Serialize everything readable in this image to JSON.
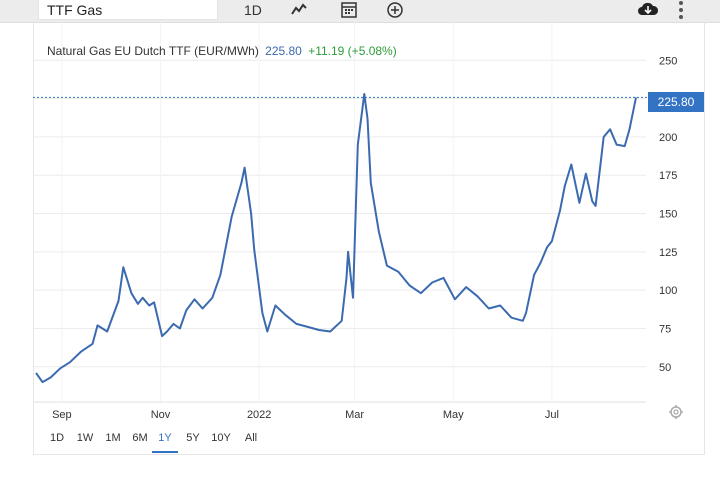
{
  "toolbar": {
    "search_value": "TTF Gas",
    "period_label": "1D",
    "icons": [
      "line-chart-icon",
      "calendar-icon",
      "plus-circle-icon",
      "cloud-download-icon",
      "more-vertical-icon"
    ]
  },
  "legend": {
    "name": "Natural Gas EU Dutch TTF (EUR/MWh)",
    "price": "225.80",
    "change": "+11.19 (+5.08%)"
  },
  "price_tag": "225.80",
  "range_buttons": [
    {
      "label": "1D",
      "active": false
    },
    {
      "label": "1W",
      "active": false
    },
    {
      "label": "1M",
      "active": false
    },
    {
      "label": "6M",
      "active": false
    },
    {
      "label": "1Y",
      "active": true
    },
    {
      "label": "5Y",
      "active": false
    },
    {
      "label": "10Y",
      "active": false
    },
    {
      "label": "All",
      "active": false
    }
  ],
  "colors": {
    "line": "#3b6ab0",
    "accent": "#3373c4",
    "positive": "#2e9c3b"
  },
  "chart_data": {
    "type": "line",
    "title": "",
    "xlabel": "",
    "ylabel": "",
    "x_ticks": [
      "Sep",
      "Nov",
      "2022",
      "Mar",
      "May",
      "Jul"
    ],
    "y_ticks": [
      50,
      75,
      100,
      125,
      150,
      175,
      200,
      225,
      250
    ],
    "y_tick_labels": [
      "50",
      "75",
      "100",
      "125",
      "150",
      "175",
      "200",
      "",
      "250"
    ],
    "ylim": [
      27,
      275
    ],
    "grid": true,
    "last_value": 225.8,
    "series": [
      {
        "x": [
          "2021-08-16",
          "2021-08-20",
          "2021-08-25",
          "2021-08-31",
          "2021-09-06",
          "2021-09-13",
          "2021-09-20",
          "2021-09-23",
          "2021-09-29",
          "2021-10-06",
          "2021-10-09",
          "2021-10-14",
          "2021-10-18",
          "2021-10-21",
          "2021-10-25",
          "2021-10-28",
          "2021-11-02",
          "2021-11-05",
          "2021-11-09",
          "2021-11-13",
          "2021-11-17",
          "2021-11-22",
          "2021-11-27",
          "2021-12-03",
          "2021-12-08",
          "2021-12-15",
          "2021-12-21",
          "2021-12-23",
          "2021-12-27",
          "2021-12-29",
          "2022-01-03",
          "2022-01-06",
          "2022-01-11",
          "2022-01-17",
          "2022-01-24",
          "2022-01-31",
          "2022-02-07",
          "2022-02-14",
          "2022-02-21",
          "2022-02-24",
          "2022-02-25",
          "2022-02-28",
          "2022-03-03",
          "2022-03-07",
          "2022-03-09",
          "2022-03-11",
          "2022-03-16",
          "2022-03-21",
          "2022-03-28",
          "2022-04-04",
          "2022-04-11",
          "2022-04-18",
          "2022-04-25",
          "2022-05-02",
          "2022-05-09",
          "2022-05-16",
          "2022-05-23",
          "2022-05-30",
          "2022-06-06",
          "2022-06-13",
          "2022-06-15",
          "2022-06-20",
          "2022-06-24",
          "2022-06-28",
          "2022-07-01",
          "2022-07-06",
          "2022-07-09",
          "2022-07-13",
          "2022-07-18",
          "2022-07-22",
          "2022-07-26",
          "2022-07-28",
          "2022-08-02",
          "2022-08-06",
          "2022-08-10",
          "2022-08-15",
          "2022-08-18",
          "2022-08-22"
        ],
        "values": [
          46,
          40,
          43,
          49,
          53,
          60,
          65,
          77,
          73,
          93,
          115,
          98,
          91,
          95,
          90,
          92,
          70,
          73,
          78,
          75,
          87,
          94,
          88,
          95,
          110,
          148,
          170,
          180,
          150,
          126,
          85,
          73,
          90,
          84,
          78,
          76,
          74,
          73,
          80,
          108,
          125,
          95,
          195,
          228,
          212,
          170,
          138,
          116,
          112,
          103,
          98,
          105,
          108,
          94,
          102,
          96,
          88,
          90,
          82,
          80,
          85,
          110,
          118,
          128,
          132,
          152,
          168,
          182,
          157,
          176,
          158,
          155,
          200,
          205,
          195,
          194,
          205,
          225.8
        ]
      }
    ]
  }
}
